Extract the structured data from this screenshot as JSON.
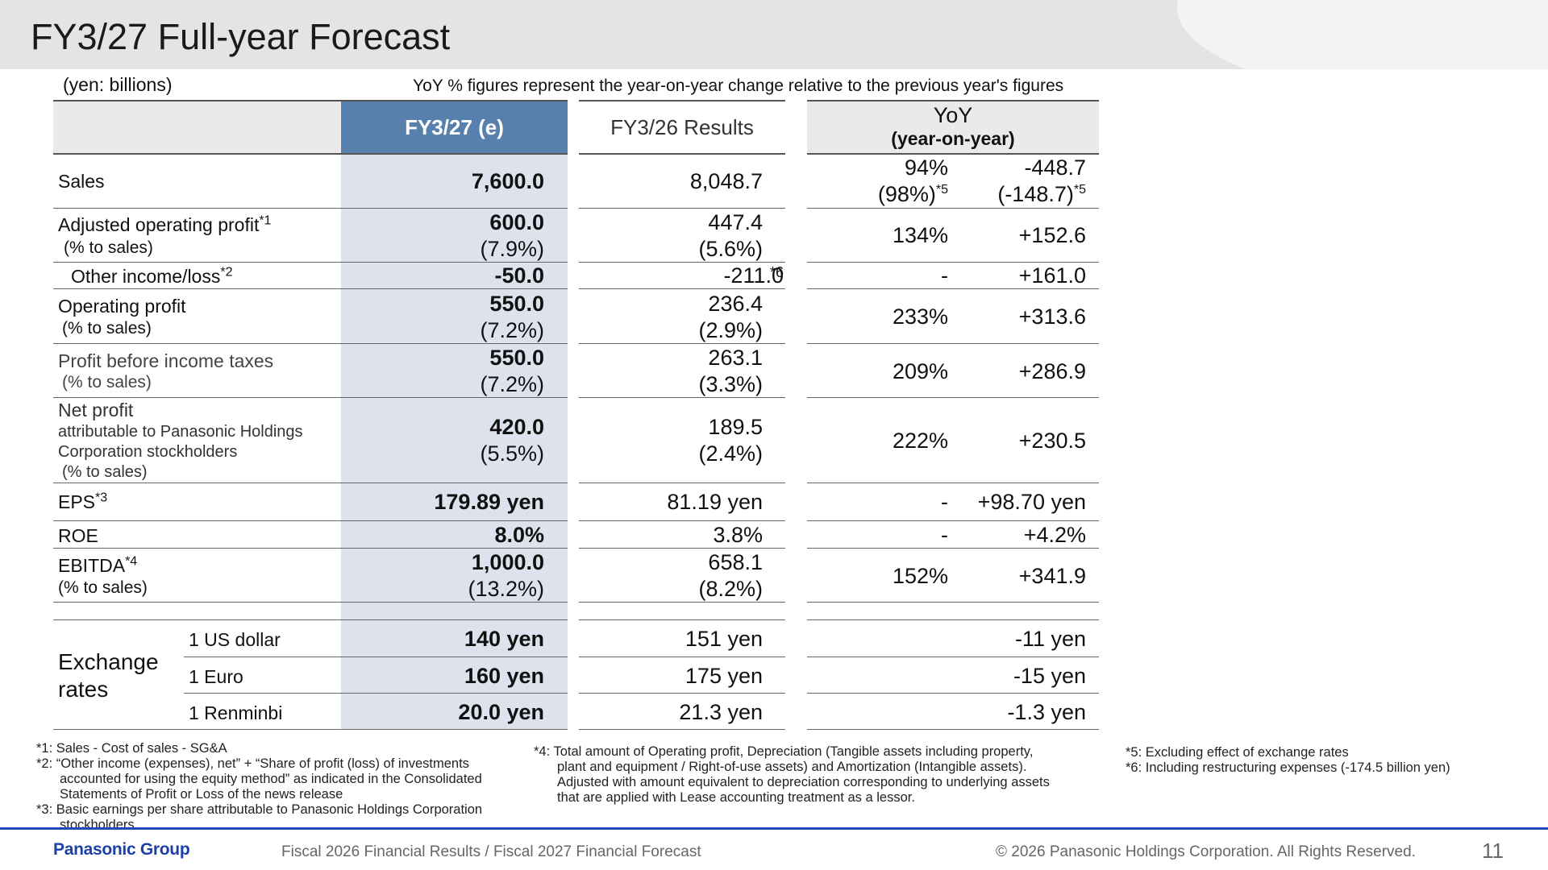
{
  "title": "FY3/27 Full-year Forecast",
  "unit_note": "(yen: billions)",
  "yoy_note": "YoY % figures represent the year-on-year change relative to the previous year's figures",
  "headers": {
    "forecast": "FY3/27 (e)",
    "results": "FY3/26 Results",
    "yoy_main": "YoY",
    "yoy_sub": "(year-on-year)"
  },
  "rows": {
    "sales": {
      "label": "Sales",
      "fc": "7,600.0",
      "res": "8,048.7",
      "yoy_pct": "94%",
      "yoy_pct2": "(98%)",
      "yoy_pct2_sup": "*5",
      "yoy_amt": "-448.7",
      "yoy_amt2": "(-148.7)",
      "yoy_amt2_sup": "*5"
    },
    "adj_op": {
      "label": "Adjusted operating profit",
      "label_sup": "*1",
      "sub": "(% to sales)",
      "fc": "600.0",
      "fc2": "(7.9%)",
      "res": "447.4",
      "res2": "(5.6%)",
      "yoy_pct": "134%",
      "yoy_amt": "+152.6"
    },
    "other": {
      "label": "Other income/loss",
      "label_sup": "*2",
      "fc": "-50.0",
      "res": "-211.0",
      "res_sup": "*6",
      "yoy_pct": "-",
      "yoy_amt": "+161.0"
    },
    "op": {
      "label": "Operating profit",
      "sub": "(% to sales)",
      "fc": "550.0",
      "fc2": "(7.2%)",
      "res": "236.4",
      "res2": "(2.9%)",
      "yoy_pct": "233%",
      "yoy_amt": "+313.6"
    },
    "pbt": {
      "label": "Profit before income taxes",
      "sub": "(% to sales)",
      "fc": "550.0",
      "fc2": "(7.2%)",
      "res": "263.1",
      "res2": "(3.3%)",
      "yoy_pct": "209%",
      "yoy_amt": "+286.9"
    },
    "np": {
      "label": "Net profit",
      "sub1": "attributable to Panasonic Holdings",
      "sub2": "Corporation stockholders",
      "sub3": "(% to sales)",
      "fc": "420.0",
      "fc2": "(5.5%)",
      "res": "189.5",
      "res2": "(2.4%)",
      "yoy_pct": "222%",
      "yoy_amt": "+230.5"
    },
    "eps": {
      "label": "EPS",
      "label_sup": "*3",
      "fc": "179.89 yen",
      "res": "81.19 yen",
      "yoy_pct": "-",
      "yoy_amt": "+98.70 yen"
    },
    "roe": {
      "label": "ROE",
      "fc": "8.0%",
      "res": "3.8%",
      "yoy_pct": "-",
      "yoy_amt": "+4.2%"
    },
    "ebitda": {
      "label": "EBITDA",
      "label_sup": "*4",
      "sub": "(% to sales)",
      "fc": "1,000.0",
      "fc2": "(13.2%)",
      "res": "658.1",
      "res2": "(8.2%)",
      "yoy_pct": "152%",
      "yoy_amt": "+341.9"
    }
  },
  "exchange": {
    "label1": "Exchange",
    "label2": "rates",
    "items": [
      {
        "name": "1 US dollar",
        "fc": "140 yen",
        "res": "151 yen",
        "yoy": "-11 yen"
      },
      {
        "name": "1 Euro",
        "fc": "160 yen",
        "res": "175 yen",
        "yoy": "-15 yen"
      },
      {
        "name": "1 Renminbi",
        "fc": "20.0 yen",
        "res": "21.3 yen",
        "yoy": "-1.3 yen"
      }
    ]
  },
  "footnotes": {
    "n1": "*1: Sales - Cost of sales - SG&A",
    "n2a": "*2: “Other income (expenses), net” + “Share of profit (loss) of investments",
    "n2b": "accounted for using the equity method” as indicated in the Consolidated",
    "n2c": "Statements of Profit or Loss of the news release",
    "n3a": "*3: Basic earnings per share attributable to Panasonic Holdings Corporation",
    "n3b": "stockholders",
    "n4a": "*4: Total amount of Operating profit, Depreciation (Tangible assets including property,",
    "n4b": "plant and equipment / Right-of-use assets) and Amortization (Intangible assets).",
    "n4c": "Adjusted with amount equivalent to depreciation corresponding to underlying assets",
    "n4d": "that are applied with Lease accounting treatment as a lessor.",
    "n5": "*5: Excluding effect of exchange rates",
    "n6": "*6: Including restructuring expenses (-174.5 billion yen)"
  },
  "footer": {
    "brand": "Panasonic Group",
    "doc": "Fiscal 2026 Financial Results / Fiscal 2027 Financial Forecast",
    "copyright": "© 2026 Panasonic Holdings Corporation. All Rights Reserved.",
    "page": "11"
  }
}
